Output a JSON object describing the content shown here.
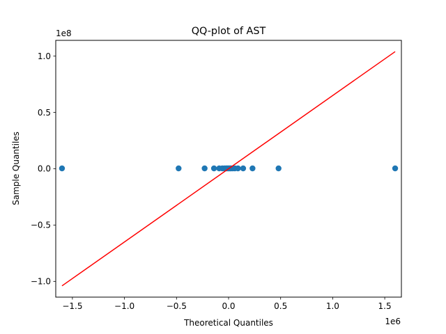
{
  "chart_data": {
    "type": "scatter",
    "title": "QQ-plot of AST",
    "xlabel": "Theoretical Quantiles",
    "ylabel": "Sample Quantiles",
    "x_offset_label": "1e6",
    "y_offset_label": "1e8",
    "x_scale": 1000000,
    "y_scale": 100000000,
    "xlim": [
      -1.66,
      1.66
    ],
    "ylim": [
      -1.14,
      1.14
    ],
    "grid": false,
    "x_ticks": [
      {
        "value": -1.5,
        "label": "−1.5"
      },
      {
        "value": -1.0,
        "label": "−1.0"
      },
      {
        "value": -0.5,
        "label": "−0.5"
      },
      {
        "value": 0.0,
        "label": "0.0"
      },
      {
        "value": 0.5,
        "label": "0.5"
      },
      {
        "value": 1.0,
        "label": "1.0"
      },
      {
        "value": 1.5,
        "label": "1.5"
      }
    ],
    "y_ticks": [
      {
        "value": -1.0,
        "label": "−1.0"
      },
      {
        "value": -0.5,
        "label": "−0.5"
      },
      {
        "value": 0.0,
        "label": "0.0"
      },
      {
        "value": 0.5,
        "label": "0.5"
      },
      {
        "value": 1.0,
        "label": "1.0"
      }
    ],
    "series": [
      {
        "kind": "points",
        "color": "#1f77b4",
        "x": [
          -1.6,
          -0.48,
          -0.23,
          -0.14,
          -0.09,
          -0.06,
          -0.04,
          -0.025,
          -0.015,
          -0.005,
          0.005,
          0.015,
          0.025,
          0.04,
          0.06,
          0.09,
          0.14,
          0.23,
          0.48,
          1.6
        ],
        "y": [
          0.003,
          0.003,
          0.003,
          0.003,
          0.003,
          0.003,
          0.003,
          0.003,
          0.003,
          0.003,
          0.003,
          0.003,
          0.003,
          0.003,
          0.003,
          0.003,
          0.003,
          0.003,
          0.003,
          0.003
        ]
      },
      {
        "kind": "line",
        "color": "#ff0000",
        "x": [
          -1.6,
          1.6
        ],
        "y": [
          -1.04,
          1.04
        ]
      }
    ]
  }
}
